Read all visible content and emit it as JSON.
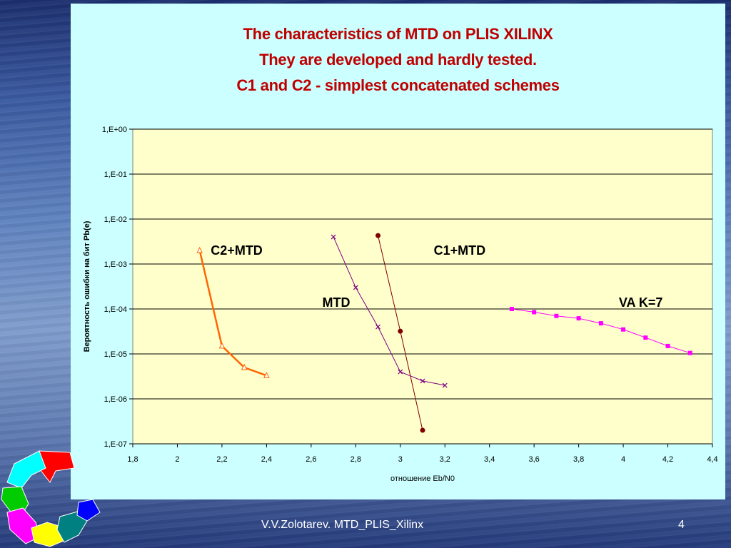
{
  "slide": {
    "title_lines": [
      "The characteristics  of  MTD  on  PLIS  XILINX",
      "They  are  developed  and  hardly  tested.",
      "C1 and C2 - simplest concatenated schemes"
    ],
    "footer_left": "V.V.Zolotarev.   MTD_PLIS_Xilinx",
    "slide_number": "4"
  },
  "chart_data": {
    "type": "line",
    "xlabel": "отношение Eb/N0",
    "ylabel": "Вероятность ошибки на бит Pb(e)",
    "xlim": [
      1.8,
      4.4
    ],
    "x_ticks": [
      1.8,
      2,
      2.2,
      2.4,
      2.6,
      2.8,
      3,
      3.2,
      3.4,
      3.6,
      3.8,
      4,
      4.2,
      4.4
    ],
    "x_tick_labels": [
      "1,8",
      "2",
      "2,2",
      "2,4",
      "2,6",
      "2,8",
      "3",
      "3,2",
      "3,4",
      "3,6",
      "3,8",
      "4",
      "4,2",
      "4,4"
    ],
    "y_scale": "log",
    "ylim": [
      1e-07,
      1
    ],
    "y_ticks": [
      1,
      0.1,
      0.01,
      0.001,
      0.0001,
      1e-05,
      1e-06,
      1e-07
    ],
    "y_tick_labels": [
      "1,E+00",
      "1,E-01",
      "1,E-02",
      "1,E-03",
      "1,E-04",
      "1,E-05",
      "1,E-06",
      "1,E-07"
    ],
    "grid": "horizontal",
    "plot_background": "#ffffcc",
    "series": [
      {
        "name": "C2+MTD",
        "color": "#ff6600",
        "marker": "triangle",
        "x": [
          2.1,
          2.2,
          2.3,
          2.4
        ],
        "y": [
          0.002,
          1.5e-05,
          5e-06,
          3.3e-06
        ]
      },
      {
        "name": "MTD",
        "color": "#800080",
        "marker": "x",
        "x": [
          2.7,
          2.8,
          2.9,
          3.0,
          3.1,
          3.2
        ],
        "y": [
          0.004,
          0.0003,
          4e-05,
          4e-06,
          2.5e-06,
          2e-06
        ]
      },
      {
        "name": "C1+MTD",
        "color": "#800000",
        "marker": "circle",
        "x": [
          2.9,
          3.0,
          3.1
        ],
        "y": [
          0.0043,
          3.2e-05,
          2e-07
        ]
      },
      {
        "name": "VA  K=7",
        "color": "#ff00ff",
        "marker": "square",
        "x": [
          3.5,
          3.6,
          3.7,
          3.8,
          3.9,
          4.0,
          4.1,
          4.2,
          4.3
        ],
        "y": [
          0.0001,
          8.5e-05,
          7e-05,
          6.2e-05,
          4.8e-05,
          3.5e-05,
          2.3e-05,
          1.5e-05,
          1.05e-05
        ]
      }
    ],
    "annotations": [
      {
        "text": "C2+MTD",
        "x": 2.15,
        "y": 0.002
      },
      {
        "text": "C1+MTD",
        "x": 3.15,
        "y": 0.002
      },
      {
        "text": "MTD",
        "x": 2.65,
        "y": 0.00014
      },
      {
        "text": "VA  K=7",
        "x": 3.98,
        "y": 0.00014
      }
    ]
  }
}
